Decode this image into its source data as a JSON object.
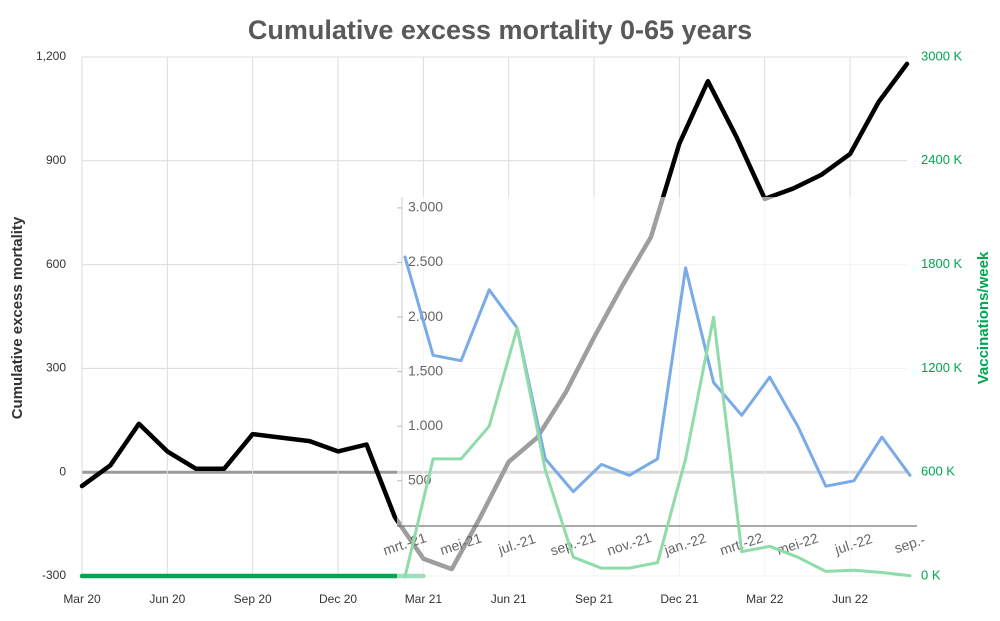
{
  "chart_data": [
    {
      "type": "line",
      "title": "Cumulative excess mortality 0-65 years",
      "y_label": "Cumulative excess mortality",
      "y2_label": "Vaccinations/week",
      "categories": [
        "Mar 20",
        null,
        null,
        "Jun 20",
        null,
        null,
        "Sep 20",
        null,
        null,
        "Dec 20",
        null,
        null,
        "Mar 21",
        null,
        null,
        "Jun 21",
        null,
        null,
        "Sep 21",
        null,
        null,
        "Dec 21",
        null,
        null,
        "Mar 22",
        null,
        null,
        "Jun 22",
        null,
        null
      ],
      "series": [
        {
          "color": "#000000",
          "values": [
            -40,
            20,
            140,
            60,
            10,
            10,
            110,
            100,
            90,
            60,
            80,
            -130,
            -250,
            -280,
            -130,
            30,
            100,
            230,
            390,
            540,
            680,
            950,
            1130,
            970,
            790,
            820,
            860,
            920,
            1070,
            1180
          ]
        },
        {
          "color": "#00a651",
          "axis": "y2",
          "values": [
            0,
            0,
            0,
            0,
            0,
            0,
            0,
            0,
            0,
            0,
            0,
            0,
            0,
            null,
            null,
            null,
            null,
            null,
            null,
            null,
            null,
            null,
            null,
            null,
            null,
            null,
            null,
            null,
            null,
            null
          ]
        }
      ],
      "ylim": [
        -300,
        1200
      ],
      "yticks": [
        -300,
        0,
        300,
        600,
        900,
        {
          "value": 1200,
          "label": "1,200"
        }
      ],
      "y2lim": [
        0,
        3000
      ],
      "y2ticks": [
        {
          "value": 0,
          "label": "0 K"
        },
        {
          "value": 600,
          "label": "600 K"
        },
        {
          "value": 1200,
          "label": "1200 K"
        },
        {
          "value": 1800,
          "label": "1800 K"
        },
        {
          "value": 2400,
          "label": "2400 K"
        },
        {
          "value": 3000,
          "label": "3000 K"
        }
      ],
      "grid": true
    },
    {
      "type": "line",
      "categories": [
        "mrt.-21",
        null,
        "mei-21",
        null,
        "jul.-21",
        null,
        "sep.-21",
        null,
        "nov.-21",
        null,
        "jan.-22",
        null,
        "mrt.-22",
        null,
        "mei-22",
        null,
        "jul.-22",
        null,
        "sep.-"
      ],
      "series": [
        {
          "color": "#7aaae8",
          "values": [
            2550,
            1650,
            1600,
            2250,
            1900,
            700,
            400,
            650,
            550,
            700,
            2450,
            1400,
            1100,
            1450,
            1000,
            450,
            500,
            900,
            550
          ]
        },
        {
          "color": "#8fdcaa",
          "values": [
            -380,
            700,
            700,
            1000,
            1900,
            600,
            -200,
            -300,
            -300,
            -250,
            700,
            2000,
            -150,
            -100,
            -200,
            -330,
            -320,
            -340,
            -370
          ]
        }
      ],
      "ylim": [
        -400,
        3100
      ],
      "yticks": [
        {
          "value": 3000,
          "label": "3.000"
        },
        {
          "value": 2500,
          "label": "2.500"
        },
        {
          "value": 2000,
          "label": "2.000"
        },
        {
          "value": 1500,
          "label": "1.500"
        },
        {
          "value": 1000,
          "label": "1.000"
        },
        500
      ]
    }
  ]
}
